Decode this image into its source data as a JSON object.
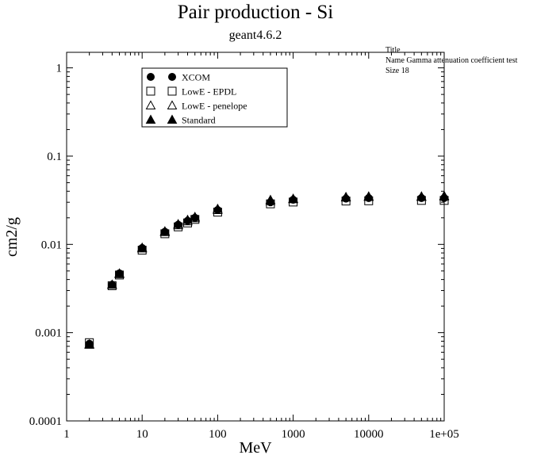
{
  "chart_data": {
    "type": "scatter",
    "title": "Pair production - Si",
    "subtitle": "geant4.6.2",
    "xlabel": "MeV",
    "ylabel": "cm2/g",
    "x_scale": "log",
    "y_scale": "log",
    "xlim": [
      1,
      100000
    ],
    "ylim": [
      0.0001,
      1.5
    ],
    "x_ticks": [
      "1",
      "10",
      "100",
      "1000",
      "10000",
      "1e+05"
    ],
    "y_ticks": [
      "0.0001",
      "0.001",
      "0.01",
      "0.1",
      "1"
    ],
    "legend_position": "top-left",
    "note_lines": [
      "Title",
      "Name  Gamma attenuation coefficient test",
      "Size  18"
    ],
    "series": [
      {
        "name": "XCOM",
        "marker": "filled-circle",
        "points": [
          [
            2,
            0.00075
          ],
          [
            4,
            0.0035
          ],
          [
            5,
            0.0047
          ],
          [
            10,
            0.0091
          ],
          [
            20,
            0.0139
          ],
          [
            30,
            0.0167
          ],
          [
            40,
            0.0185
          ],
          [
            50,
            0.02
          ],
          [
            100,
            0.0245
          ],
          [
            500,
            0.03
          ],
          [
            1000,
            0.032
          ],
          [
            5000,
            0.033
          ],
          [
            10000,
            0.0335
          ],
          [
            50000,
            0.0335
          ],
          [
            100000,
            0.0335
          ]
        ]
      },
      {
        "name": "LowE - EPDL",
        "marker": "open-square",
        "points": [
          [
            2,
            0.00077
          ],
          [
            4,
            0.0034
          ],
          [
            5,
            0.0045
          ],
          [
            10,
            0.0086
          ],
          [
            20,
            0.0132
          ],
          [
            30,
            0.0158
          ],
          [
            40,
            0.0175
          ],
          [
            50,
            0.0192
          ],
          [
            100,
            0.0232
          ],
          [
            500,
            0.0288
          ],
          [
            1000,
            0.0302
          ],
          [
            5000,
            0.031
          ],
          [
            10000,
            0.0312
          ],
          [
            50000,
            0.0315
          ],
          [
            100000,
            0.0315
          ]
        ]
      },
      {
        "name": "LowE - penelope",
        "marker": "open-triangle",
        "points": [
          [
            2,
            0.00074
          ],
          [
            4,
            0.0035
          ],
          [
            5,
            0.0046
          ],
          [
            10,
            0.009
          ],
          [
            20,
            0.0138
          ],
          [
            30,
            0.0165
          ],
          [
            40,
            0.0183
          ],
          [
            50,
            0.0198
          ],
          [
            100,
            0.0245
          ],
          [
            500,
            0.031
          ],
          [
            1000,
            0.0325
          ],
          [
            5000,
            0.034
          ],
          [
            10000,
            0.0345
          ],
          [
            50000,
            0.0345
          ],
          [
            100000,
            0.035
          ]
        ]
      },
      {
        "name": "Standard",
        "marker": "filled-triangle",
        "points": [
          [
            2,
            0.00073
          ],
          [
            4,
            0.0035
          ],
          [
            5,
            0.0047
          ],
          [
            10,
            0.0092
          ],
          [
            20,
            0.0141
          ],
          [
            30,
            0.017
          ],
          [
            40,
            0.019
          ],
          [
            50,
            0.0205
          ],
          [
            100,
            0.0253
          ],
          [
            500,
            0.032
          ],
          [
            1000,
            0.033
          ],
          [
            5000,
            0.0345
          ],
          [
            10000,
            0.035
          ],
          [
            50000,
            0.035
          ],
          [
            100000,
            0.0355
          ]
        ]
      }
    ]
  }
}
